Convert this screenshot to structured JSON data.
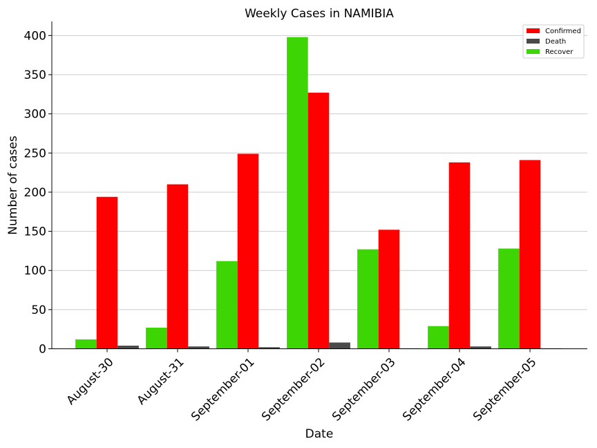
{
  "chart_data": {
    "type": "bar",
    "title": "Weekly Cases in NAMIBIA",
    "xlabel": "Date",
    "ylabel": "Number of cases",
    "categories": [
      "August-30",
      "August-31",
      "September-01",
      "September-02",
      "September-03",
      "September-04",
      "September-05"
    ],
    "series": [
      {
        "name": "Recover",
        "color": "#3dd604",
        "values": [
          12,
          27,
          112,
          398,
          127,
          29,
          128
        ]
      },
      {
        "name": "Confirmed",
        "color": "#ff0000",
        "values": [
          194,
          210,
          249,
          327,
          152,
          238,
          241
        ]
      },
      {
        "name": "Death",
        "color": "#4a4a4a",
        "values": [
          4,
          3,
          2,
          8,
          0.6,
          3,
          0.6
        ]
      }
    ],
    "legend_order": [
      "Confirmed",
      "Death",
      "Recover"
    ],
    "yticks": [
      0,
      50,
      100,
      150,
      200,
      250,
      300,
      350,
      400
    ],
    "ylim": [
      0,
      418
    ],
    "grid": "horizontal",
    "legend_position": "top-right"
  }
}
